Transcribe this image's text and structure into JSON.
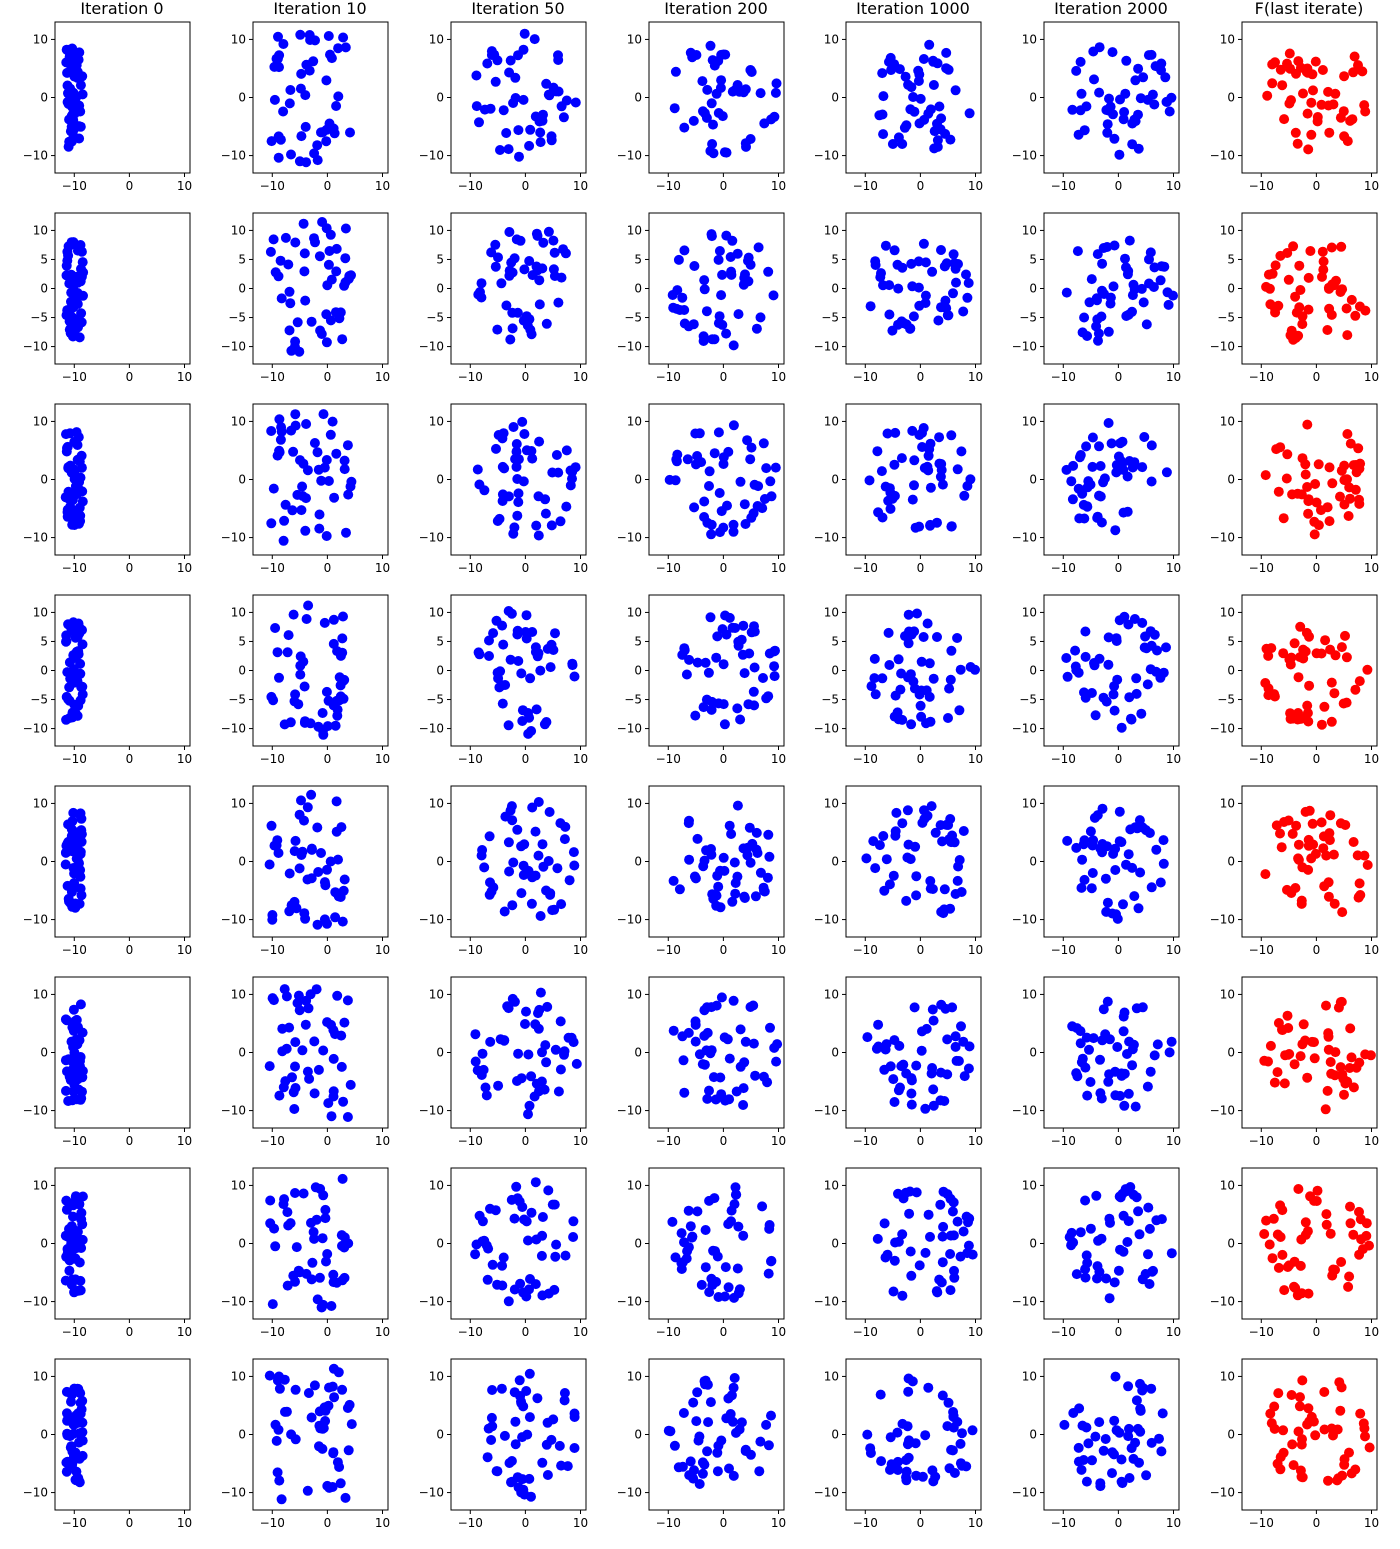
{
  "column_titles": [
    "Iteration 0",
    "Iteration 10",
    "Iteration 50",
    "Iteration 200",
    "Iteration 1000",
    "Iteration 2000",
    "F(last iterate)"
  ],
  "colors": {
    "iterate": "#0000ff",
    "final": "#ff0000",
    "axes": "#000000",
    "background": "#ffffff"
  },
  "chart_data": {
    "type": "scatter",
    "rows": 8,
    "columns": 7,
    "points_per_panel": 50,
    "xlim": [
      -13.5,
      11
    ],
    "ylim": [
      -13,
      13
    ],
    "xticks": [
      -10,
      0,
      10
    ],
    "yticks_by_row": [
      [
        -10,
        0,
        10
      ],
      [
        -10,
        -5,
        0,
        5,
        10
      ],
      [
        -10,
        0,
        10
      ],
      [
        -10,
        -5,
        0,
        5,
        10
      ],
      [
        -10,
        0,
        10
      ],
      [
        -10,
        0,
        10
      ],
      [
        -10,
        0,
        10
      ],
      [
        -10,
        0,
        10
      ]
    ],
    "grid": false,
    "series_colors": [
      "blue",
      "blue",
      "blue",
      "blue",
      "blue",
      "blue",
      "red"
    ],
    "panel_spread": [
      {
        "x_center": -10,
        "x_spread": 1.6,
        "y_spread": 8.5
      },
      {
        "x_center": -3,
        "x_spread": 7.5,
        "y_spread": 11.5
      },
      {
        "x_center": 0,
        "x_spread": 9.5,
        "y_spread": 11
      },
      {
        "x_center": 0,
        "x_spread": 10,
        "y_spread": 10
      },
      {
        "x_center": 0,
        "x_spread": 10,
        "y_spread": 10
      },
      {
        "x_center": 0,
        "x_spread": 10,
        "y_spread": 10
      },
      {
        "x_center": 0,
        "x_spread": 10,
        "y_spread": 10
      }
    ]
  }
}
